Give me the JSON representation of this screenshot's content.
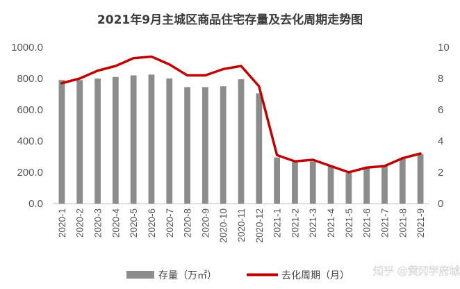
{
  "chart_data": {
    "type": "bar",
    "title": "2021年9月主城区商品住宅存量及去化周期走势图",
    "categories": [
      "2020-1",
      "2020-2",
      "2020-3",
      "2020-4",
      "2020-5",
      "2020-6",
      "2020-7",
      "2020-8",
      "2020-9",
      "2020-10",
      "2020-11",
      "2020-12",
      "2021-1",
      "2021-2",
      "2021-3",
      "2021-4",
      "2021-5",
      "2021-6",
      "2021-7",
      "2021-8",
      "2021-9"
    ],
    "series": [
      {
        "name": "存量（万㎡）",
        "type": "bar",
        "axis": "left",
        "color": "#8c8c8c",
        "values": [
          790,
          790,
          800,
          810,
          820,
          825,
          800,
          745,
          745,
          750,
          795,
          705,
          295,
          265,
          270,
          245,
          195,
          235,
          240,
          285,
          315
        ]
      },
      {
        "name": "去化周期（月）",
        "type": "line",
        "axis": "right",
        "color": "#c00000",
        "values": [
          7.7,
          8.0,
          8.5,
          8.8,
          9.3,
          9.4,
          8.9,
          8.2,
          8.2,
          8.6,
          8.8,
          7.5,
          3.1,
          2.7,
          2.8,
          2.4,
          2.0,
          2.3,
          2.4,
          2.9,
          3.2
        ]
      }
    ],
    "y_left": {
      "ylim": [
        0,
        1000
      ],
      "ticks": [
        "0.0",
        "200.0",
        "400.0",
        "600.0",
        "800.0",
        "1000.0"
      ]
    },
    "y_right": {
      "ylim": [
        0,
        10
      ],
      "ticks": [
        "0",
        "2",
        "4",
        "6",
        "8",
        "10"
      ]
    },
    "grid": false,
    "legend_position": "bottom"
  },
  "watermark": "知乎 @黄冈学府城"
}
